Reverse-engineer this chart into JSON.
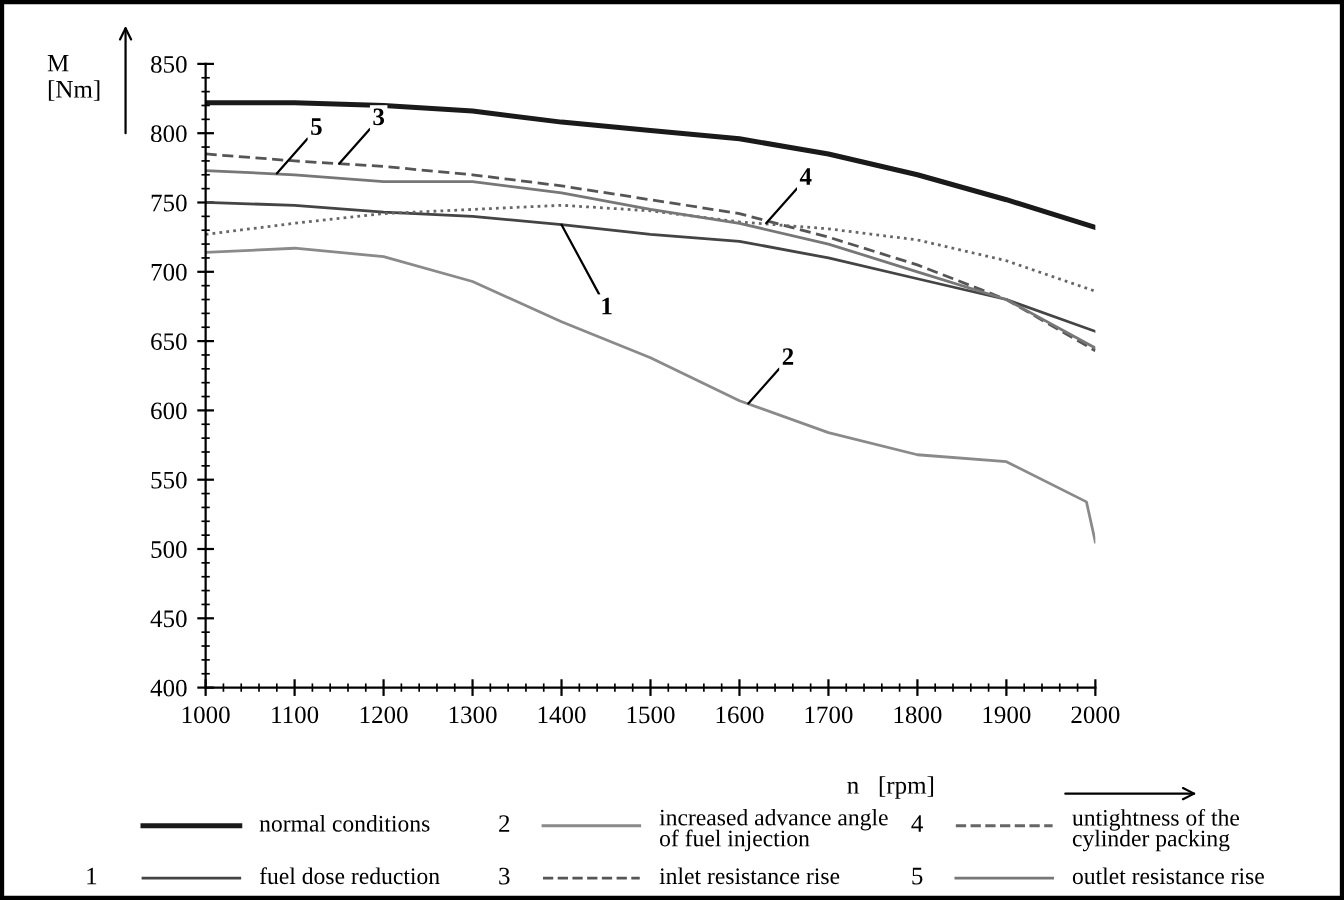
{
  "chart_data": {
    "type": "line",
    "ylabel": "M\n[Nm]",
    "xlabel": "n   [rpm]",
    "x": [
      1000,
      1100,
      1200,
      1300,
      1400,
      1500,
      1600,
      1700,
      1800,
      1900,
      2000
    ],
    "xlim": [
      1000,
      2000
    ],
    "xticks": [
      1000,
      1100,
      1200,
      1300,
      1400,
      1500,
      1600,
      1700,
      1800,
      1900,
      2000
    ],
    "ylim": [
      400,
      850
    ],
    "yticks": [
      400,
      450,
      500,
      550,
      600,
      650,
      700,
      750,
      800,
      850
    ],
    "grid": false,
    "legend": "bottom",
    "marker": "none",
    "series": [
      {
        "name": "normal conditions",
        "color": "#1a1a1a",
        "line_style": "solid",
        "values": [
          822,
          822,
          820,
          816,
          808,
          802,
          796,
          785,
          770,
          752,
          732
        ]
      },
      {
        "name": "fuel dose reduction",
        "color": "#444444",
        "line_style": "solid",
        "values": [
          750,
          748,
          743,
          740,
          734,
          727,
          722,
          710,
          695,
          680,
          657
        ]
      },
      {
        "name": "increased advance angle\nof fuel injection",
        "color": "#8a8a8a",
        "line_style": "solid",
        "x": [
          1000,
          1100,
          1200,
          1300,
          1400,
          1500,
          1600,
          1700,
          1800,
          1900,
          1990,
          2000
        ],
        "values": [
          714,
          717,
          711,
          693,
          664,
          638,
          607,
          584,
          568,
          563,
          534,
          505
        ]
      },
      {
        "name": "inlet resistance rise",
        "color": "#555555",
        "line_style": "dashed",
        "values": [
          785,
          780,
          776,
          770,
          762,
          752,
          742,
          725,
          705,
          680,
          643
        ]
      },
      {
        "name": "untightness of the\ncylinder packing",
        "color": "#666666",
        "line_style": "dotted",
        "values": [
          727,
          735,
          742,
          745,
          748,
          744,
          736,
          731,
          723,
          708,
          686
        ]
      },
      {
        "name": "outlet resistance rise",
        "color": "#777777",
        "line_style": "solid",
        "values": [
          773,
          770,
          765,
          765,
          757,
          745,
          735,
          720,
          700,
          680,
          645
        ]
      }
    ],
    "annotations": [
      {
        "text": "1",
        "x": 1400,
        "y": 734
      },
      {
        "text": "2",
        "x": 1610,
        "y": 605
      },
      {
        "text": "3",
        "x": 1150,
        "y": 778
      },
      {
        "text": "4",
        "x": 1630,
        "y": 735
      },
      {
        "text": "5",
        "x": 1080,
        "y": 771
      }
    ]
  }
}
